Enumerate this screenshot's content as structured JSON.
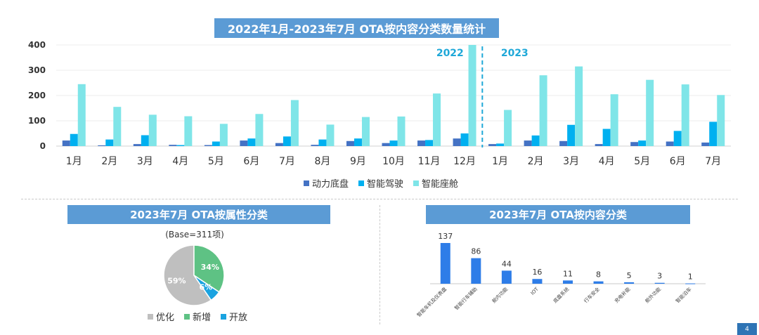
{
  "titles": {
    "main": "2022年1月-2023年7月 OTA按内容分类数量统计",
    "pie": "2023年7月 OTA按属性分类",
    "bar2": "2023年7月 OTA按内容分类"
  },
  "colors": {
    "banner": "#5b9bd5",
    "s1": "#4472c4",
    "s2": "#00b0f0",
    "s3": "#7fe5e8",
    "optimize": "#bfbfbf",
    "add": "#5ec284",
    "open": "#1aa3e0",
    "bar2": "#2e7de8",
    "year": "#1fa8d8"
  },
  "chart_data": [
    {
      "type": "bar",
      "title": "2022年1月-2023年7月 OTA按内容分类数量统计",
      "categories": [
        "1月",
        "2月",
        "3月",
        "4月",
        "5月",
        "6月",
        "7月",
        "8月",
        "9月",
        "10月",
        "11月",
        "12月",
        "1月",
        "2月",
        "3月",
        "4月",
        "5月",
        "6月",
        "7月"
      ],
      "year_labels": [
        "2022",
        "2023"
      ],
      "ylim": [
        0,
        400
      ],
      "yticks": [
        "0",
        "100",
        "200",
        "300",
        "400"
      ],
      "series": [
        {
          "name": "动力底盘",
          "values": [
            22,
            3,
            8,
            5,
            4,
            22,
            12,
            5,
            20,
            12,
            22,
            30,
            8,
            22,
            20,
            8,
            16,
            18,
            14
          ]
        },
        {
          "name": "智能驾驶",
          "values": [
            48,
            26,
            43,
            4,
            18,
            30,
            38,
            26,
            30,
            22,
            24,
            50,
            10,
            42,
            84,
            68,
            22,
            60,
            96
          ]
        },
        {
          "name": "智能座舱",
          "values": [
            245,
            155,
            124,
            118,
            88,
            127,
            182,
            85,
            115,
            117,
            208,
            400,
            143,
            280,
            315,
            205,
            262,
            244,
            202
          ]
        }
      ]
    },
    {
      "type": "pie",
      "title": "2023年7月 OTA按属性分类",
      "subtitle": "(Base=311项)",
      "slices": [
        {
          "name": "优化",
          "value": 59,
          "label": "59%"
        },
        {
          "name": "新增",
          "value": 34,
          "label": "34%"
        },
        {
          "name": "开放",
          "value": 6,
          "label": "6%"
        }
      ]
    },
    {
      "type": "bar",
      "title": "2023年7月 OTA按内容分类",
      "categories": [
        "智能车机及仪表盘",
        "智能行车辅助",
        "舱内功能",
        "IOT",
        "底盘系统",
        "行车安全",
        "充电补能",
        "舱外功能",
        "智能泊车"
      ],
      "values": [
        137,
        86,
        44,
        16,
        11,
        8,
        5,
        3,
        1
      ],
      "ylim": [
        0,
        137
      ]
    }
  ],
  "page_number": "4"
}
